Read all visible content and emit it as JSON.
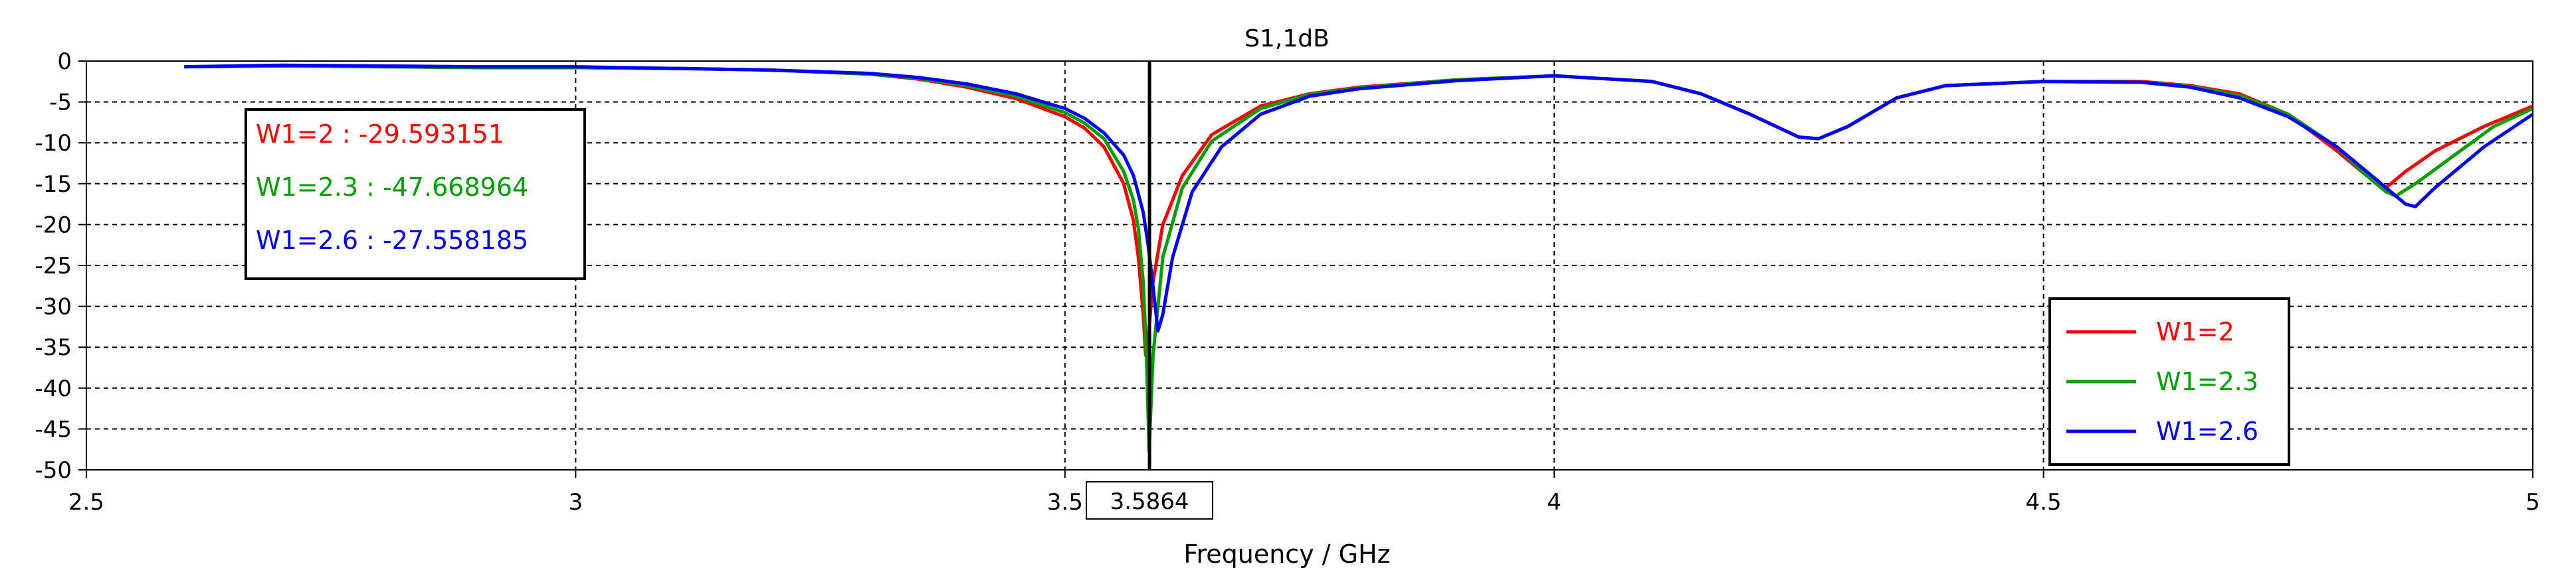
{
  "chart_data": {
    "type": "line",
    "title": "S1,1dB",
    "xlabel": "Frequency / GHz",
    "ylabel": "",
    "xlim": [
      2.5,
      5.0
    ],
    "ylim": [
      -50,
      0
    ],
    "xticks": [
      "2.5",
      "3",
      "3.5",
      "4",
      "4.5",
      "5"
    ],
    "xtick_values": [
      2.5,
      3.0,
      3.5,
      4.0,
      4.5,
      5.0
    ],
    "yticks": [
      "0",
      "-5",
      "-10",
      "-15",
      "-20",
      "-25",
      "-30",
      "-35",
      "-40",
      "-45",
      "-50"
    ],
    "ytick_values": [
      0,
      -5,
      -10,
      -15,
      -20,
      -25,
      -30,
      -35,
      -40,
      -45,
      -50
    ],
    "grid": true,
    "legend_position": "bottom-right",
    "marker": {
      "x": 3.5864,
      "label": "3.5864"
    },
    "annotations": [
      {
        "text": "W1=2 : -29.593151",
        "color": "#ff0000"
      },
      {
        "text": "W1=2.3 : -47.668964",
        "color": "#00a000"
      },
      {
        "text": "W1=2.6 : -27.558185",
        "color": "#0000ff"
      }
    ],
    "series": [
      {
        "name": "W1=2",
        "color": "#ff0000",
        "x": [
          2.6,
          2.7,
          2.8,
          2.9,
          3.0,
          3.1,
          3.2,
          3.3,
          3.35,
          3.4,
          3.45,
          3.5,
          3.52,
          3.54,
          3.56,
          3.57,
          3.575,
          3.58,
          3.5825,
          3.585,
          3.59,
          3.6,
          3.62,
          3.65,
          3.7,
          3.75,
          3.8,
          3.9,
          4.0,
          4.1,
          4.15,
          4.2,
          4.25,
          4.27,
          4.3,
          4.35,
          4.4,
          4.5,
          4.6,
          4.65,
          4.7,
          4.75,
          4.8,
          4.83,
          4.85,
          4.87,
          4.9,
          4.95,
          5.0
        ],
        "values": [
          -0.7,
          -0.6,
          -0.7,
          -0.8,
          -0.8,
          -0.9,
          -1.1,
          -1.6,
          -2.2,
          -3.2,
          -4.6,
          -6.8,
          -8.2,
          -10.5,
          -15.0,
          -19.5,
          -24.0,
          -31.0,
          -36.0,
          -34.0,
          -27.0,
          -20.0,
          -14.0,
          -9.0,
          -5.5,
          -4.0,
          -3.2,
          -2.3,
          -1.8,
          -2.5,
          -4.0,
          -6.5,
          -9.3,
          -9.5,
          -8.0,
          -4.5,
          -3.0,
          -2.5,
          -2.5,
          -3.0,
          -4.0,
          -6.5,
          -11.0,
          -14.0,
          -15.5,
          -13.5,
          -11.0,
          -8.0,
          -5.5
        ]
      },
      {
        "name": "W1=2.3",
        "color": "#00a000",
        "x": [
          2.6,
          2.7,
          2.8,
          2.9,
          3.0,
          3.1,
          3.2,
          3.3,
          3.35,
          3.4,
          3.45,
          3.5,
          3.52,
          3.54,
          3.56,
          3.57,
          3.575,
          3.58,
          3.583,
          3.586,
          3.59,
          3.6,
          3.62,
          3.65,
          3.7,
          3.75,
          3.8,
          3.9,
          4.0,
          4.1,
          4.15,
          4.2,
          4.25,
          4.27,
          4.3,
          4.35,
          4.4,
          4.5,
          4.6,
          4.65,
          4.7,
          4.75,
          4.8,
          4.83,
          4.85,
          4.86,
          4.88,
          4.92,
          4.96,
          5.0
        ],
        "values": [
          -0.7,
          -0.6,
          -0.7,
          -0.8,
          -0.8,
          -0.9,
          -1.1,
          -1.6,
          -2.1,
          -3.0,
          -4.3,
          -6.3,
          -7.6,
          -9.5,
          -13.5,
          -17.0,
          -20.5,
          -27.0,
          -35.0,
          -47.7,
          -36.0,
          -24.0,
          -15.5,
          -9.8,
          -5.8,
          -4.1,
          -3.3,
          -2.3,
          -1.8,
          -2.5,
          -4.0,
          -6.5,
          -9.3,
          -9.5,
          -8.0,
          -4.5,
          -3.0,
          -2.5,
          -2.6,
          -3.1,
          -4.2,
          -6.5,
          -10.5,
          -14.0,
          -16.0,
          -16.5,
          -15.0,
          -11.5,
          -8.0,
          -5.8
        ]
      },
      {
        "name": "W1=2.6",
        "color": "#0000ff",
        "x": [
          2.6,
          2.7,
          2.8,
          2.9,
          3.0,
          3.1,
          3.2,
          3.3,
          3.35,
          3.4,
          3.45,
          3.5,
          3.52,
          3.54,
          3.56,
          3.57,
          3.58,
          3.585,
          3.59,
          3.595,
          3.6,
          3.61,
          3.63,
          3.66,
          3.7,
          3.75,
          3.8,
          3.9,
          4.0,
          4.1,
          4.15,
          4.2,
          4.25,
          4.27,
          4.3,
          4.35,
          4.4,
          4.5,
          4.6,
          4.65,
          4.7,
          4.75,
          4.8,
          4.84,
          4.87,
          4.88,
          4.9,
          4.95,
          5.0
        ],
        "values": [
          -0.7,
          -0.5,
          -0.6,
          -0.7,
          -0.7,
          -0.9,
          -1.1,
          -1.5,
          -2.0,
          -2.8,
          -4.0,
          -5.8,
          -7.0,
          -8.8,
          -11.5,
          -14.0,
          -18.5,
          -22.5,
          -27.6,
          -33.0,
          -31.0,
          -24.0,
          -16.0,
          -10.5,
          -6.5,
          -4.3,
          -3.4,
          -2.4,
          -1.8,
          -2.5,
          -4.0,
          -6.5,
          -9.3,
          -9.5,
          -8.0,
          -4.5,
          -3.0,
          -2.5,
          -2.6,
          -3.2,
          -4.5,
          -6.8,
          -10.5,
          -14.5,
          -17.5,
          -17.8,
          -15.5,
          -10.5,
          -6.5
        ]
      }
    ]
  }
}
